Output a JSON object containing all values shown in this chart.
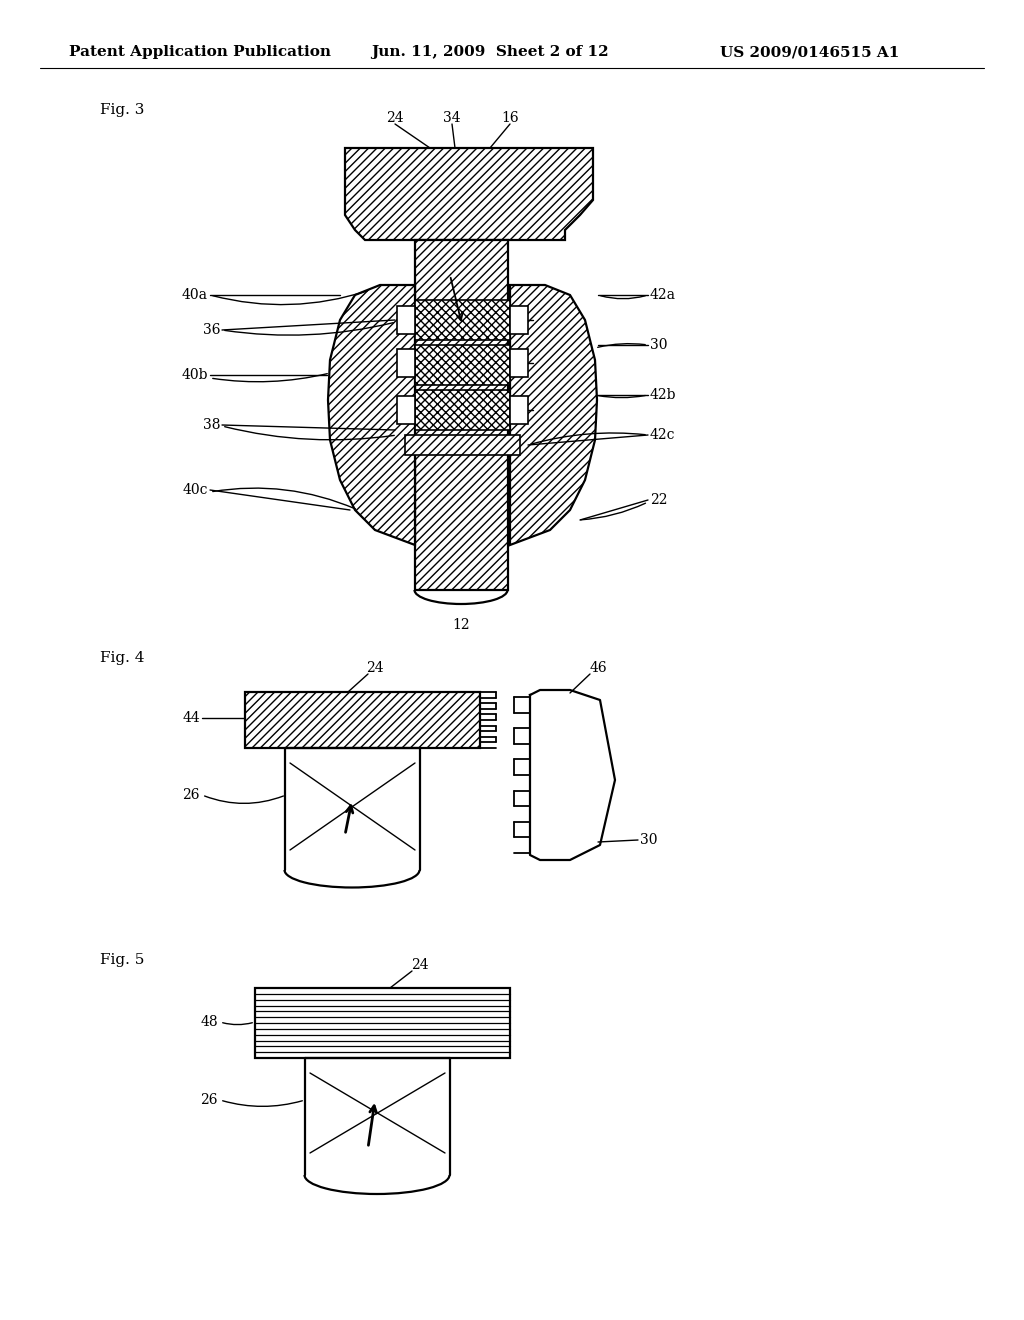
{
  "background_color": "#ffffff",
  "header_left": "Patent Application Publication",
  "header_center": "Jun. 11, 2009  Sheet 2 of 12",
  "header_right": "US 2009/0146515 A1",
  "fig3_label": "Fig. 3",
  "fig4_label": "Fig. 4",
  "fig5_label": "Fig. 5",
  "lw_main": 1.6,
  "lw_thin": 0.9,
  "font_size_header": 11,
  "font_size_label": 11,
  "font_size_ref": 10
}
